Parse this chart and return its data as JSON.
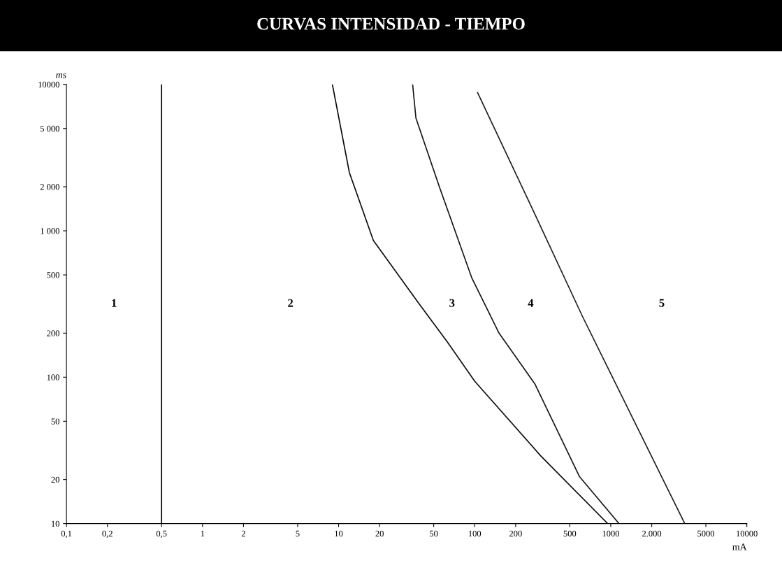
{
  "chart_data": {
    "type": "line",
    "title": "CURVAS INTENSIDAD - TIEMPO",
    "xlabel": "mA",
    "ylabel": "ms",
    "log": "xy",
    "legend": false,
    "marker": "none",
    "line_style": "solid",
    "xlim": [
      0.1,
      10000
    ],
    "ylim": [
      10,
      10000
    ],
    "xticks": [
      {
        "value": 0.1,
        "label": "0,1"
      },
      {
        "value": 0.2,
        "label": "0,2"
      },
      {
        "value": 0.5,
        "label": "0,5"
      },
      1,
      2,
      5,
      10,
      20,
      50,
      100,
      200,
      500,
      1000,
      {
        "value": 2000,
        "label": "2.000"
      },
      5000,
      10000
    ],
    "yticks": [
      10,
      20,
      50,
      100,
      200,
      500,
      {
        "value": 1000,
        "label": "1 000"
      },
      {
        "value": 2000,
        "label": "2 000"
      },
      {
        "value": 5000,
        "label": "5 000"
      },
      10000
    ],
    "series": [
      {
        "color": "#0a0a0a",
        "x": [
          9,
          12,
          18,
          39,
          63,
          100,
          306,
          950
        ],
        "values": [
          10000,
          2500,
          860,
          318,
          174,
          94,
          29,
          10
        ]
      },
      {
        "color": "#141414",
        "x": [
          35,
          37,
          55,
          95,
          151,
          277,
          588,
          1150
        ],
        "values": [
          10000,
          5900,
          2000,
          480,
          200,
          90,
          21,
          10
        ]
      },
      {
        "color": "#1e1e1e",
        "x": [
          105,
          263,
          620,
          3500
        ],
        "values": [
          8800,
          1440,
          260,
          10
        ]
      }
    ],
    "ref_lines": [
      {
        "axis": "x",
        "value": 0.5,
        "color": "#000000",
        "line_style": "solid"
      }
    ],
    "annotations": [
      "1",
      "2",
      "3",
      "4",
      "5"
    ]
  }
}
